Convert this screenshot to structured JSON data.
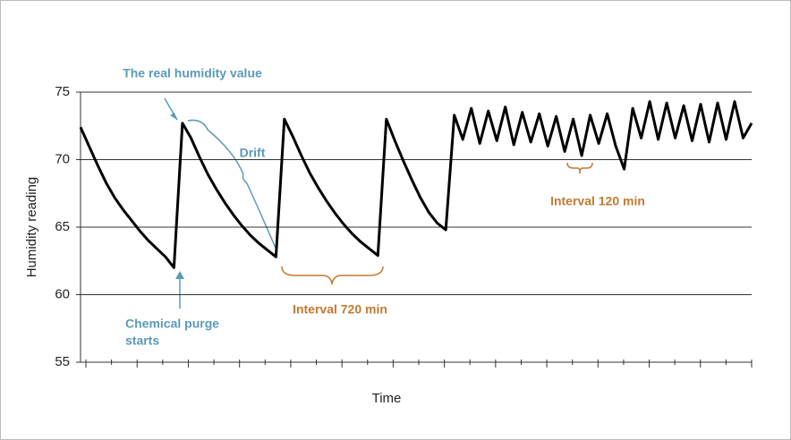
{
  "chart_data": {
    "type": "line",
    "ylabel": "Humidity reading",
    "xlabel": "Time",
    "ylim": [
      55,
      75
    ],
    "yticks": [
      55,
      60,
      65,
      70,
      75
    ],
    "grid": true,
    "color": "#000000",
    "values": [
      72.4,
      71.0,
      69.6,
      68.3,
      67.2,
      66.3,
      65.5,
      64.7,
      64.0,
      63.4,
      62.8,
      62.0,
      72.7,
      71.6,
      70.2,
      68.9,
      67.8,
      66.8,
      65.9,
      65.1,
      64.4,
      63.8,
      63.3,
      62.8,
      73.0,
      71.7,
      70.3,
      69.0,
      67.9,
      66.9,
      66.0,
      65.2,
      64.5,
      63.9,
      63.4,
      62.9,
      73.0,
      71.4,
      69.9,
      68.5,
      67.2,
      66.1,
      65.3,
      64.8,
      73.3,
      71.5,
      73.8,
      71.2,
      73.6,
      71.4,
      73.9,
      71.1,
      73.5,
      71.3,
      73.4,
      71.0,
      73.2,
      70.6,
      73.0,
      70.3,
      73.3,
      71.2,
      73.4,
      71.0,
      69.3,
      73.8,
      71.6,
      74.3,
      71.5,
      74.2,
      71.6,
      74.0,
      71.4,
      74.1,
      71.3,
      74.2,
      71.5,
      74.3,
      71.6,
      72.7
    ],
    "annotations": [
      "The real humidity value",
      "Drift",
      "Chemical purge",
      "starts",
      "Interval 720 min",
      "Interval 120 min"
    ]
  }
}
